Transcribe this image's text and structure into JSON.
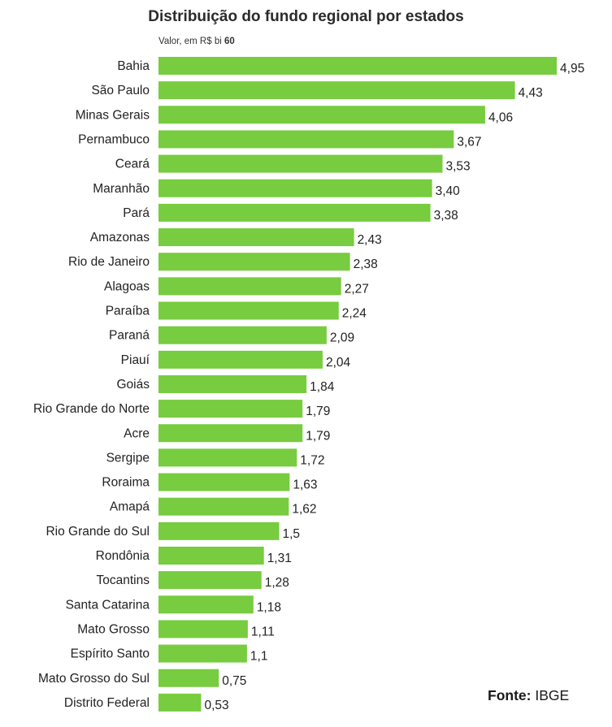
{
  "chart_data": {
    "type": "bar",
    "orientation": "horizontal",
    "title": "Distribuição do fundo regional por estados",
    "subtitle_prefix": "Valor, em R$ bi",
    "subtitle_total": "60",
    "source_label": "Fonte:",
    "source_name": "IBGE",
    "bar_color": "#77cc3f",
    "categories": [
      "Bahia",
      "São Paulo",
      "Minas Gerais",
      "Pernambuco",
      "Ceará",
      "Maranhão",
      "Pará",
      "Amazonas",
      "Rio de Janeiro",
      "Alagoas",
      "Paraíba",
      "Paraná",
      "Piauí",
      "Goiás",
      "Rio Grande do Norte",
      "Acre",
      "Sergipe",
      "Roraima",
      "Amapá",
      "Rio Grande do Sul",
      "Rondônia",
      "Tocantins",
      "Santa Catarina",
      "Mato Grosso",
      "Espírito Santo",
      "Mato Grosso do Sul",
      "Distrito Federal"
    ],
    "values": [
      4.95,
      4.43,
      4.06,
      3.67,
      3.53,
      3.4,
      3.38,
      2.43,
      2.38,
      2.27,
      2.24,
      2.09,
      2.04,
      1.84,
      1.79,
      1.79,
      1.72,
      1.63,
      1.62,
      1.5,
      1.31,
      1.28,
      1.18,
      1.11,
      1.1,
      0.75,
      0.53
    ],
    "value_labels": [
      "4,95",
      "4,43",
      "4,06",
      "3,67",
      "3,53",
      "3,40",
      "3,38",
      "2,43",
      "2,38",
      "2,27",
      "2,24",
      "2,09",
      "2,04",
      "1,84",
      "1,79",
      "1,79",
      "1,72",
      "1,63",
      "1,62",
      "1,5",
      "1,31",
      "1,28",
      "1,18",
      "1,11",
      "1,1",
      "0,75",
      "0,53"
    ]
  }
}
